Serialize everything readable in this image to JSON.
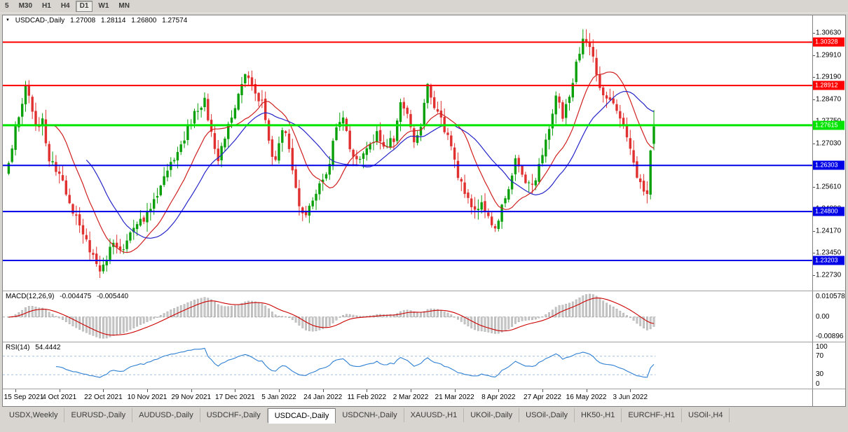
{
  "toolbar": {
    "periods": [
      {
        "label": "5",
        "active": false
      },
      {
        "label": "M30",
        "active": false
      },
      {
        "label": "H1",
        "active": false
      },
      {
        "label": "H4",
        "active": false
      },
      {
        "label": "D1",
        "active": true
      },
      {
        "label": "W1",
        "active": false
      },
      {
        "label": "MN",
        "active": false
      }
    ]
  },
  "chart": {
    "title": "USDCAD-,Daily",
    "quote": {
      "open": "1.27008",
      "high": "1.28114",
      "low": "1.26800",
      "close": "1.27574"
    },
    "price_axis": {
      "top_price": 1.312,
      "bottom_price": 1.2222,
      "ticks": [
        "1.30630",
        "1.29910",
        "1.29190",
        "1.28470",
        "1.27750",
        "1.27030",
        "1.25610",
        "1.24890",
        "1.24170",
        "1.23450",
        "1.22730"
      ]
    },
    "hlines": [
      {
        "price": 1.30328,
        "label": "1.30328",
        "color": "#FF0000",
        "width": 2
      },
      {
        "price": 1.28912,
        "label": "1.28912",
        "color": "#FF0000",
        "width": 2
      },
      {
        "price": 1.27615,
        "label": "1.27615",
        "color": "#00E400",
        "width": 3
      },
      {
        "price": 1.26303,
        "label": "1.26303",
        "color": "#0000E6",
        "width": 2
      },
      {
        "price": 1.248,
        "label": "1.24800",
        "color": "#0000E6",
        "width": 2
      },
      {
        "price": 1.23203,
        "label": "1.23203",
        "color": "#0000E6",
        "width": 2
      }
    ],
    "candles": {
      "count": 192,
      "up_color": "#0AA00A",
      "down_color": "#E03030",
      "anchors": [
        [
          0,
          1.265
        ],
        [
          3,
          1.279
        ],
        [
          5,
          1.2885
        ],
        [
          8,
          1.276
        ],
        [
          10,
          1.2775
        ],
        [
          12,
          1.265
        ],
        [
          15,
          1.26
        ],
        [
          18,
          1.25
        ],
        [
          21,
          1.244
        ],
        [
          24,
          1.235
        ],
        [
          27,
          1.23
        ],
        [
          29,
          1.233
        ],
        [
          31,
          1.2385
        ],
        [
          34,
          1.236
        ],
        [
          37,
          1.242
        ],
        [
          40,
          1.2455
        ],
        [
          43,
          1.251
        ],
        [
          46,
          1.2595
        ],
        [
          49,
          1.265
        ],
        [
          52,
          1.272
        ],
        [
          55,
          1.28
        ],
        [
          58,
          1.2845
        ],
        [
          60,
          1.274
        ],
        [
          62,
          1.266
        ],
        [
          64,
          1.271
        ],
        [
          66,
          1.279
        ],
        [
          68,
          1.287
        ],
        [
          70,
          1.2935
        ],
        [
          72,
          1.29
        ],
        [
          75,
          1.283
        ],
        [
          77,
          1.27
        ],
        [
          79,
          1.264
        ],
        [
          81,
          1.276
        ],
        [
          83,
          1.269
        ],
        [
          85,
          1.255
        ],
        [
          87,
          1.246
        ],
        [
          90,
          1.253
        ],
        [
          93,
          1.257
        ],
        [
          95,
          1.265
        ],
        [
          97,
          1.2745
        ],
        [
          99,
          1.279
        ],
        [
          101,
          1.269
        ],
        [
          103,
          1.265
        ],
        [
          106,
          1.269
        ],
        [
          109,
          1.273
        ],
        [
          112,
          1.2695
        ],
        [
          114,
          1.272
        ],
        [
          116,
          1.284
        ],
        [
          118,
          1.28
        ],
        [
          120,
          1.27
        ],
        [
          122,
          1.276
        ],
        [
          124,
          1.2895
        ],
        [
          126,
          1.283
        ],
        [
          128,
          1.278
        ],
        [
          130,
          1.272
        ],
        [
          132,
          1.264
        ],
        [
          134,
          1.257
        ],
        [
          136,
          1.252
        ],
        [
          138,
          1.249
        ],
        [
          140,
          1.251
        ],
        [
          142,
          1.247
        ],
        [
          144,
          1.242
        ],
        [
          146,
          1.249
        ],
        [
          148,
          1.256
        ],
        [
          150,
          1.265
        ],
        [
          152,
          1.26
        ],
        [
          154,
          1.256
        ],
        [
          156,
          1.259
        ],
        [
          158,
          1.266
        ],
        [
          160,
          1.274
        ],
        [
          162,
          1.285
        ],
        [
          164,
          1.279
        ],
        [
          166,
          1.285
        ],
        [
          168,
          1.296
        ],
        [
          170,
          1.303
        ],
        [
          171,
          1.3045
        ],
        [
          173,
          1.298
        ],
        [
          175,
          1.289
        ],
        [
          177,
          1.286
        ],
        [
          179,
          1.283
        ],
        [
          181,
          1.279
        ],
        [
          183,
          1.273
        ],
        [
          185,
          1.264
        ],
        [
          187,
          1.257
        ],
        [
          189,
          1.2525
        ],
        [
          190,
          1.269
        ],
        [
          191,
          1.2757
        ]
      ]
    },
    "moving_averages": [
      {
        "period": 13,
        "color": "#D02020"
      },
      {
        "period": 24,
        "color": "#2424C8"
      }
    ]
  },
  "macd": {
    "label": "MACD(12,26,9)",
    "value1": "-0.004475",
    "value2": "-0.005440",
    "axis": [
      "0.010578",
      "0.00",
      "-0.00896"
    ],
    "hist_color": "#C6C6C6",
    "hist_stroke": "#A3A3A3",
    "signal_color": "#CC0000",
    "zero_color": "#ABABAB"
  },
  "rsi": {
    "label": "RSI(14)",
    "value": "54.4442",
    "axis": [
      "100",
      "70",
      "30",
      "0"
    ],
    "levels": [
      70,
      30
    ],
    "line_color": "#2D7FD3",
    "level_color": "#A5BFDA"
  },
  "date_axis": {
    "labels": [
      {
        "i": 2,
        "text": "15 Sep 2021"
      },
      {
        "i": 15,
        "text": "4 Oct 2021"
      },
      {
        "i": 28,
        "text": "22 Oct 2021"
      },
      {
        "i": 41,
        "text": "10 Nov 2021"
      },
      {
        "i": 54,
        "text": "29 Nov 2021"
      },
      {
        "i": 67,
        "text": "17 Dec 2021"
      },
      {
        "i": 80,
        "text": "5 Jan 2022"
      },
      {
        "i": 93,
        "text": "24 Jan 2022"
      },
      {
        "i": 106,
        "text": "11 Feb 2022"
      },
      {
        "i": 119,
        "text": "2 Mar 2022"
      },
      {
        "i": 132,
        "text": "21 Mar 2022"
      },
      {
        "i": 145,
        "text": "8 Apr 2022"
      },
      {
        "i": 158,
        "text": "27 Apr 2022"
      },
      {
        "i": 171,
        "text": "16 May 2022"
      },
      {
        "i": 184,
        "text": "3 Jun 2022"
      }
    ]
  },
  "tabs": [
    {
      "label": "USDX,Weekly",
      "active": false
    },
    {
      "label": "EURUSD-,Daily",
      "active": false
    },
    {
      "label": "AUDUSD-,Daily",
      "active": false
    },
    {
      "label": "USDCHF-,Daily",
      "active": false
    },
    {
      "label": "USDCAD-,Daily",
      "active": true
    },
    {
      "label": "USDCNH-,Daily",
      "active": false
    },
    {
      "label": "XAUUSD-,H1",
      "active": false
    },
    {
      "label": "UKOil-,Daily",
      "active": false
    },
    {
      "label": "USOil-,Daily",
      "active": false
    },
    {
      "label": "HK50-,H1",
      "active": false
    },
    {
      "label": "EURCHF-,H1",
      "active": false
    },
    {
      "label": "USOil-,H4",
      "active": false
    }
  ]
}
